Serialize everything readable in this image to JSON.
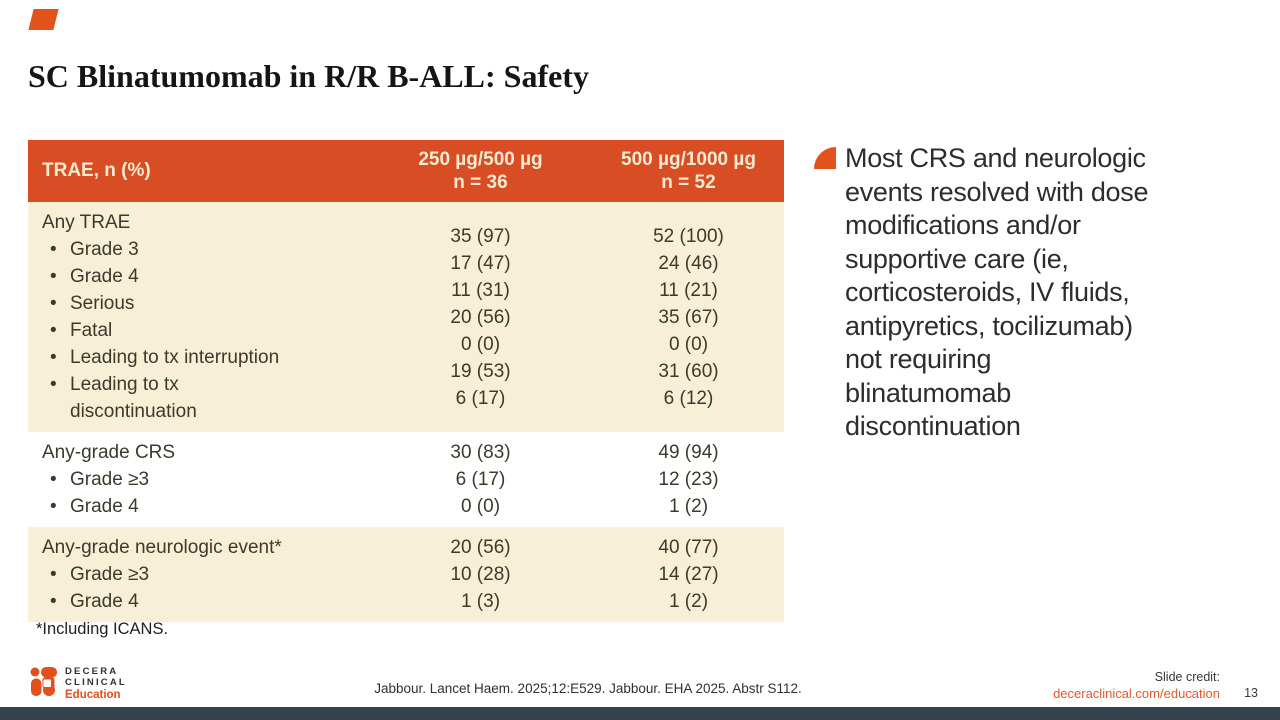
{
  "colors": {
    "header_orange": "#D94D24",
    "accent_orange": "#E2521D",
    "cream_row": "#F7F0D7",
    "table_text": "#3C3A2C",
    "link_orange": "#E4582C",
    "bottom_bar_slate": "#35424E"
  },
  "title": "SC Blinatumomab in R/R B-ALL: Safety",
  "table": {
    "header": {
      "col1": "TRAE, n (%)",
      "col2_line1": "250 µg/500 µg",
      "col2_line2": "n = 36",
      "col3_line1": "500 µg/1000 µg",
      "col3_line2": "n = 52"
    },
    "sections": [
      {
        "bg": "cream",
        "label_lines": [
          {
            "style": "plain",
            "text": "Any TRAE"
          },
          {
            "style": "bullet",
            "text": "Grade 3"
          },
          {
            "style": "bullet",
            "text": "Grade 4"
          },
          {
            "style": "bullet",
            "text": "Serious"
          },
          {
            "style": "bullet",
            "text": "Fatal"
          },
          {
            "style": "bullet",
            "text": "Leading to tx interruption"
          },
          {
            "style": "bullet",
            "text": "Leading to tx"
          },
          {
            "style": "cont",
            "text": "discontinuation"
          }
        ],
        "values_a": [
          "35 (97)",
          "17 (47)",
          "11 (31)",
          "20 (56)",
          "0 (0)",
          "19 (53)",
          "6 (17)"
        ],
        "values_b": [
          "52 (100)",
          "24 (46)",
          "11 (21)",
          "35 (67)",
          "0 (0)",
          "31 (60)",
          "6 (12)"
        ]
      },
      {
        "bg": "white",
        "label_lines": [
          {
            "style": "plain",
            "text": "Any-grade CRS"
          },
          {
            "style": "bullet",
            "text": "Grade ≥3"
          },
          {
            "style": "bullet",
            "text": "Grade 4"
          }
        ],
        "values_a": [
          "30 (83)",
          "6 (17)",
          "0 (0)"
        ],
        "values_b": [
          "49 (94)",
          "12 (23)",
          "1 (2)"
        ]
      },
      {
        "bg": "cream",
        "label_lines": [
          {
            "style": "plain",
            "text": "Any-grade neurologic event*"
          },
          {
            "style": "bullet",
            "text": "Grade ≥3"
          },
          {
            "style": "bullet",
            "text": "Grade 4"
          }
        ],
        "values_a": [
          "20 (56)",
          "10 (28)",
          "1 (3)"
        ],
        "values_b": [
          "40 (77)",
          "14 (27)",
          "1 (2)"
        ]
      }
    ]
  },
  "footnote": "*Including ICANS.",
  "bullet_text": "Most CRS and neurologic\nevents resolved with dose\nmodifications and/or\nsupportive care (ie,\ncorticosteroids, IV fluids,\nantipyretics, tocilizumab)\nnot requiring\nblinatumomab\ndiscontinuation",
  "footer": {
    "logo_line1": "DECERA",
    "logo_line2": "CLINICAL",
    "logo_line3": "Education",
    "citation": "Jabbour. Lancet Haem. 2025;12:E529. Jabbour. EHA 2025. Abstr S112.",
    "credit_label": "Slide credit:",
    "credit_link": "deceraclinical.com/education",
    "page_number": "13"
  }
}
